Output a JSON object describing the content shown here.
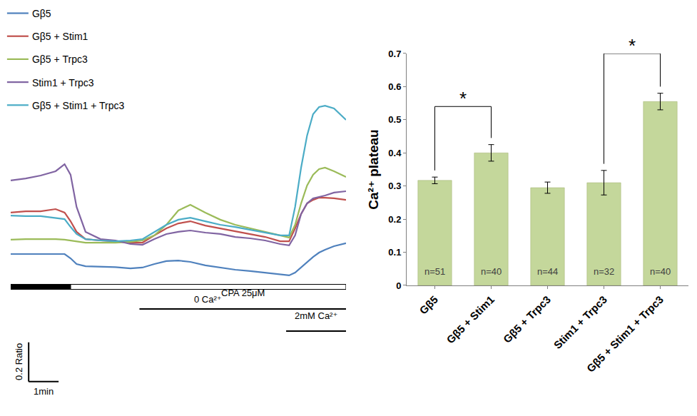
{
  "chart_data": [
    {
      "type": "line",
      "x": [
        0,
        0.5,
        1,
        1.5,
        1.8,
        2.0,
        2.2,
        2.5,
        3,
        3.5,
        4,
        4.4,
        4.8,
        5.2,
        5.6,
        6.0,
        6.5,
        7,
        7.5,
        8,
        8.5,
        9.0,
        9.3,
        9.5,
        9.7,
        9.9,
        10.1,
        10.3,
        10.5,
        10.8,
        11.2
      ],
      "series": [
        {
          "name": "Gβ5",
          "color": "#4f81bd",
          "values": [
            0.16,
            0.16,
            0.16,
            0.16,
            0.16,
            0.138,
            0.109,
            0.098,
            0.095,
            0.093,
            0.087,
            0.091,
            0.109,
            0.124,
            0.127,
            0.12,
            0.102,
            0.091,
            0.08,
            0.073,
            0.065,
            0.058,
            0.051,
            0.065,
            0.091,
            0.12,
            0.145,
            0.167,
            0.182,
            0.2,
            0.215
          ]
        },
        {
          "name": "Gβ5 + Stim1",
          "color": "#c0504d",
          "values": [
            0.371,
            0.378,
            0.378,
            0.389,
            0.371,
            0.327,
            0.273,
            0.236,
            0.229,
            0.225,
            0.218,
            0.218,
            0.255,
            0.291,
            0.316,
            0.327,
            0.305,
            0.291,
            0.276,
            0.262,
            0.247,
            0.225,
            0.225,
            0.291,
            0.364,
            0.418,
            0.436,
            0.447,
            0.447,
            0.444,
            0.436
          ]
        },
        {
          "name": "Gβ5 + Trpc3",
          "color": "#9bbb59",
          "values": [
            0.233,
            0.236,
            0.236,
            0.236,
            0.233,
            0.229,
            0.225,
            0.218,
            0.218,
            0.218,
            0.222,
            0.229,
            0.255,
            0.309,
            0.382,
            0.411,
            0.371,
            0.335,
            0.309,
            0.291,
            0.273,
            0.255,
            0.244,
            0.309,
            0.418,
            0.509,
            0.564,
            0.593,
            0.6,
            0.582,
            0.553
          ]
        },
        {
          "name": "Stim1 + Trpc3",
          "color": "#8064a2",
          "values": [
            0.535,
            0.545,
            0.56,
            0.582,
            0.618,
            0.564,
            0.4,
            0.273,
            0.236,
            0.229,
            0.211,
            0.207,
            0.236,
            0.262,
            0.273,
            0.28,
            0.269,
            0.262,
            0.247,
            0.24,
            0.229,
            0.211,
            0.204,
            0.255,
            0.364,
            0.418,
            0.444,
            0.451,
            0.458,
            0.473,
            0.48
          ]
        },
        {
          "name": "Gβ5 + Stim1 + Trpc3",
          "color": "#4bacc6",
          "values": [
            0.356,
            0.353,
            0.353,
            0.345,
            0.338,
            0.298,
            0.262,
            0.236,
            0.229,
            0.225,
            0.229,
            0.236,
            0.273,
            0.309,
            0.335,
            0.345,
            0.327,
            0.309,
            0.298,
            0.284,
            0.269,
            0.255,
            0.255,
            0.4,
            0.6,
            0.764,
            0.873,
            0.909,
            0.916,
            0.902,
            0.844
          ]
        }
      ],
      "xlim": [
        0,
        11.2
      ],
      "ylim": [
        -0.6,
        1.0
      ],
      "tick_labels": false,
      "grid": false,
      "legend": "upper left",
      "stimuli": [
        {
          "label": "0 Ca²⁺",
          "start": 2.0,
          "end": 11.2
        },
        {
          "label": "CPA 25μM",
          "start": 4.3,
          "end": 11.2
        },
        {
          "label": "2mM Ca²⁺",
          "start": 9.2,
          "end": 11.2
        }
      ],
      "scale_bar": {
        "x": 1,
        "x_label": "1min",
        "y": 0.2,
        "y_label": "0.2 Ratio"
      }
    },
    {
      "type": "bar",
      "categories": [
        "Gβ5",
        "Gβ5 + Stim1",
        "Gβ5 + Trpc3",
        "Stim1 + Trpc3",
        "Gβ5 + Stim1 + Trpc3"
      ],
      "values": [
        0.317,
        0.4,
        0.295,
        0.31,
        0.555
      ],
      "errors": [
        0.01,
        0.025,
        0.017,
        0.037,
        0.025
      ],
      "color": "#c4d79b",
      "ylabel": "Ca²⁺ plateau",
      "ylim": [
        0,
        0.7
      ],
      "yticks": [
        0,
        0.1,
        0.2,
        0.3,
        0.4,
        0.5,
        0.6,
        0.7
      ],
      "grid": false,
      "n_labels": [
        "n=51",
        "n=40",
        "n=44",
        "n=32",
        "n=40"
      ],
      "significance": [
        {
          "from": 0,
          "to": 1,
          "y": 0.54,
          "label": "*"
        },
        {
          "from": 3,
          "to": 4,
          "y": 0.7,
          "label": "*"
        }
      ]
    }
  ]
}
